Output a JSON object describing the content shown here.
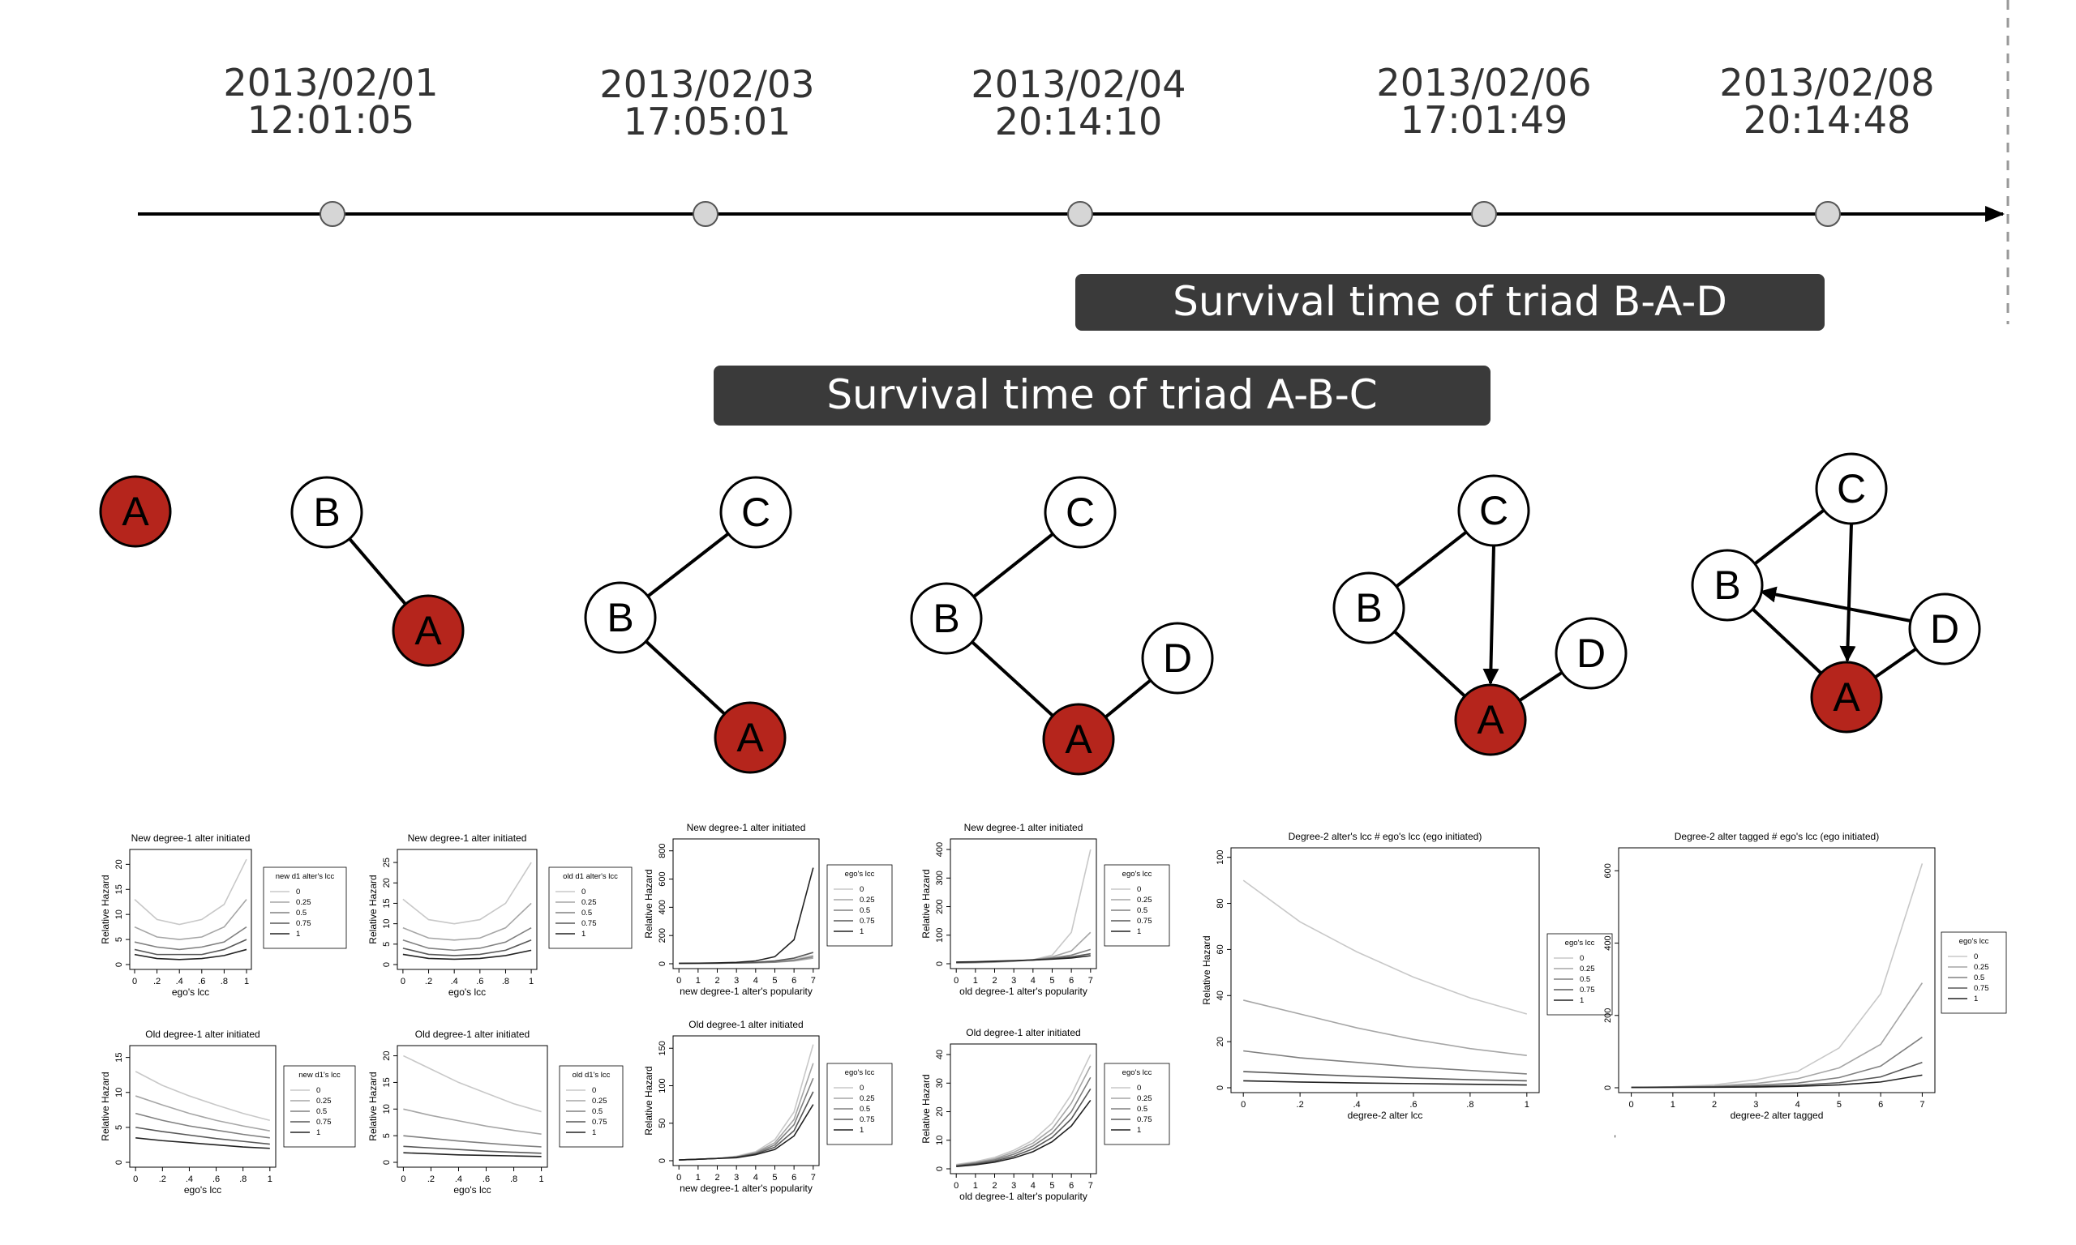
{
  "timeline": {
    "events": [
      {
        "date": "2013/02/01",
        "time": "12:01:05"
      },
      {
        "date": "2013/02/03",
        "time": "17:05:01"
      },
      {
        "date": "2013/02/04",
        "time": "20:14:10"
      },
      {
        "date": "2013/02/06",
        "time": "17:01:49"
      },
      {
        "date": "2013/02/08",
        "time": "20:14:48"
      }
    ],
    "bars": [
      {
        "label": "Survival time of triad B-A-D"
      },
      {
        "label": "Survival time of triad A-B-C"
      }
    ]
  },
  "colors": {
    "ego": "#b5251c",
    "bar": "#3a3a3a",
    "axis": "#000000"
  },
  "networks": [
    {
      "nodes": [
        {
          "label": "A",
          "ego": true
        }
      ],
      "edges": []
    },
    {
      "nodes": [
        {
          "label": "B"
        },
        {
          "label": "A",
          "ego": true
        }
      ],
      "edges": [
        [
          "B",
          "A",
          false
        ]
      ]
    },
    {
      "nodes": [
        {
          "label": "C"
        },
        {
          "label": "B"
        },
        {
          "label": "A",
          "ego": true
        }
      ],
      "edges": [
        [
          "B",
          "C",
          false
        ],
        [
          "B",
          "A",
          false
        ]
      ]
    },
    {
      "nodes": [
        {
          "label": "C"
        },
        {
          "label": "B"
        },
        {
          "label": "D"
        },
        {
          "label": "A",
          "ego": true
        }
      ],
      "edges": [
        [
          "B",
          "C",
          false
        ],
        [
          "B",
          "A",
          false
        ],
        [
          "D",
          "A",
          false
        ]
      ]
    },
    {
      "nodes": [
        {
          "label": "C"
        },
        {
          "label": "B"
        },
        {
          "label": "D"
        },
        {
          "label": "A",
          "ego": true
        }
      ],
      "edges": [
        [
          "B",
          "C",
          false
        ],
        [
          "B",
          "A",
          false
        ],
        [
          "D",
          "A",
          false
        ],
        [
          "C",
          "A",
          true
        ]
      ]
    },
    {
      "nodes": [
        {
          "label": "C"
        },
        {
          "label": "B"
        },
        {
          "label": "D"
        },
        {
          "label": "A",
          "ego": true
        }
      ],
      "edges": [
        [
          "B",
          "C",
          false
        ],
        [
          "B",
          "A",
          false
        ],
        [
          "D",
          "A",
          false
        ],
        [
          "C",
          "A",
          true
        ],
        [
          "D",
          "B",
          true
        ]
      ]
    }
  ],
  "chart_data": [
    {
      "type": "line",
      "title": "New degree-1 alter initiated",
      "xlabel": "ego's lcc",
      "ylabel": "Relative Hazard",
      "x": [
        0,
        0.2,
        0.4,
        0.6,
        0.8,
        1
      ],
      "xticks": [
        "0",
        ".2",
        ".4",
        ".6",
        ".8",
        "1"
      ],
      "ylim": [
        0,
        22
      ],
      "yticks": [
        0,
        5,
        10,
        15,
        20
      ],
      "legend_title": "new d1 alter's lcc",
      "series": [
        {
          "name": "0",
          "values": [
            13,
            9,
            8,
            9,
            12,
            21
          ]
        },
        {
          "name": "0.25",
          "values": [
            7.5,
            5.5,
            5,
            5.5,
            7.5,
            13
          ]
        },
        {
          "name": "0.5",
          "values": [
            4.5,
            3.5,
            3,
            3.5,
            4.5,
            7.5
          ]
        },
        {
          "name": "0.75",
          "values": [
            3,
            2,
            2,
            2,
            3,
            5
          ]
        },
        {
          "name": "1",
          "values": [
            2,
            1.2,
            1,
            1.2,
            1.8,
            3
          ]
        }
      ]
    },
    {
      "type": "line",
      "title": "New degree-1 alter initiated",
      "xlabel": "ego's lcc",
      "ylabel": "Relative Hazard",
      "x": [
        0,
        0.2,
        0.4,
        0.6,
        0.8,
        1
      ],
      "xticks": [
        "0",
        ".2",
        ".4",
        ".6",
        ".8",
        "1"
      ],
      "ylim": [
        0,
        27
      ],
      "yticks": [
        0,
        5,
        10,
        15,
        20,
        25
      ],
      "legend_title": "old d1 alter's lcc",
      "series": [
        {
          "name": "0",
          "values": [
            16,
            11,
            10,
            11,
            15,
            25
          ]
        },
        {
          "name": "0.25",
          "values": [
            9,
            6.5,
            6,
            6.5,
            9,
            15
          ]
        },
        {
          "name": "0.5",
          "values": [
            6,
            4,
            3.5,
            4,
            5.5,
            9
          ]
        },
        {
          "name": "0.75",
          "values": [
            4,
            2.5,
            2.2,
            2.5,
            3.5,
            6
          ]
        },
        {
          "name": "1",
          "values": [
            2.5,
            1.5,
            1.3,
            1.5,
            2.2,
            3.5
          ]
        }
      ]
    },
    {
      "type": "line",
      "title": "New degree-1 alter initiated",
      "xlabel": "new degree-1 alter's popularity",
      "ylabel": "Relative Hazard",
      "x": [
        0,
        1,
        2,
        3,
        4,
        5,
        6,
        7
      ],
      "xticks": [
        "0",
        "1",
        "2",
        "3",
        "4",
        "5",
        "6",
        "7"
      ],
      "ylim": [
        0,
        850
      ],
      "yticks": [
        0,
        200,
        400,
        600,
        800
      ],
      "legend_title": "ego's lcc",
      "series": [
        {
          "name": "0",
          "values": [
            2,
            3,
            4,
            5,
            7,
            12,
            30,
            60
          ]
        },
        {
          "name": "0.25",
          "values": [
            2,
            3,
            4,
            5,
            7,
            10,
            20,
            40
          ]
        },
        {
          "name": "0.5",
          "values": [
            2,
            3,
            4,
            5,
            8,
            12,
            25,
            50
          ]
        },
        {
          "name": "0.75",
          "values": [
            2,
            3,
            4,
            6,
            10,
            20,
            40,
            80
          ]
        },
        {
          "name": "1",
          "values": [
            3,
            4,
            6,
            10,
            20,
            50,
            170,
            680
          ]
        }
      ]
    },
    {
      "type": "line",
      "title": "New degree-1 alter initiated",
      "xlabel": "old degree-1 alter's popularity",
      "ylabel": "Relative Hazard",
      "x": [
        0,
        1,
        2,
        3,
        4,
        5,
        6,
        7
      ],
      "xticks": [
        "0",
        "1",
        "2",
        "3",
        "4",
        "5",
        "6",
        "7"
      ],
      "ylim": [
        0,
        420
      ],
      "yticks": [
        0,
        100,
        200,
        300,
        400
      ],
      "legend_title": "ego's lcc",
      "series": [
        {
          "name": "0",
          "values": [
            2,
            3,
            5,
            8,
            14,
            30,
            110,
            400
          ]
        },
        {
          "name": "0.25",
          "values": [
            3,
            4,
            6,
            9,
            14,
            24,
            45,
            110
          ]
        },
        {
          "name": "0.5",
          "values": [
            4,
            5,
            7,
            10,
            14,
            20,
            30,
            50
          ]
        },
        {
          "name": "0.75",
          "values": [
            5,
            6,
            8,
            10,
            13,
            18,
            24,
            35
          ]
        },
        {
          "name": "1",
          "values": [
            6,
            7,
            9,
            11,
            13,
            16,
            20,
            28
          ]
        }
      ]
    },
    {
      "type": "line",
      "title": "Old degree-1 alter initiated",
      "xlabel": "ego's lcc",
      "ylabel": "Relative Hazard",
      "x": [
        0,
        0.2,
        0.4,
        0.6,
        0.8,
        1
      ],
      "xticks": [
        "0",
        ".2",
        ".4",
        ".6",
        ".8",
        "1"
      ],
      "ylim": [
        0,
        16
      ],
      "yticks": [
        0,
        5,
        10,
        15
      ],
      "legend_title": "new d1's lcc",
      "series": [
        {
          "name": "0",
          "values": [
            13,
            11,
            9.5,
            8.2,
            7,
            6
          ]
        },
        {
          "name": "0.25",
          "values": [
            9.5,
            8.2,
            7,
            6,
            5.2,
            4.5
          ]
        },
        {
          "name": "0.5",
          "values": [
            7,
            6,
            5.2,
            4.6,
            4,
            3.5
          ]
        },
        {
          "name": "0.75",
          "values": [
            5,
            4.4,
            3.9,
            3.4,
            3,
            2.6
          ]
        },
        {
          "name": "1",
          "values": [
            3.5,
            3.1,
            2.8,
            2.5,
            2.2,
            2
          ]
        }
      ]
    },
    {
      "type": "line",
      "title": "Old degree-1 alter initiated",
      "xlabel": "ego's lcc",
      "ylabel": "Relative Hazard",
      "x": [
        0,
        0.2,
        0.4,
        0.6,
        0.8,
        1
      ],
      "xticks": [
        "0",
        ".2",
        ".4",
        ".6",
        ".8",
        "1"
      ],
      "ylim": [
        0,
        21
      ],
      "yticks": [
        0,
        5,
        10,
        15,
        20
      ],
      "legend_title": "old d1's lcc",
      "series": [
        {
          "name": "0",
          "values": [
            20,
            17.5,
            15,
            13,
            11,
            9.5
          ]
        },
        {
          "name": "0.25",
          "values": [
            10,
            8.8,
            7.8,
            6.8,
            6,
            5.3
          ]
        },
        {
          "name": "0.5",
          "values": [
            5,
            4.5,
            4,
            3.6,
            3.2,
            2.9
          ]
        },
        {
          "name": "0.75",
          "values": [
            3,
            2.7,
            2.4,
            2.1,
            1.9,
            1.7
          ]
        },
        {
          "name": "1",
          "values": [
            1.8,
            1.6,
            1.4,
            1.3,
            1.2,
            1.1
          ]
        }
      ]
    },
    {
      "type": "line",
      "title": "Old degree-1 alter initiated",
      "xlabel": "new degree-1 alter's popularity",
      "ylabel": "Relative Hazard",
      "x": [
        0,
        1,
        2,
        3,
        4,
        5,
        6,
        7
      ],
      "xticks": [
        "0",
        "1",
        "2",
        "3",
        "4",
        "5",
        "6",
        "7"
      ],
      "ylim": [
        0,
        160
      ],
      "yticks": [
        0,
        50,
        100,
        150
      ],
      "legend_title": "ego's lcc",
      "series": [
        {
          "name": "0",
          "values": [
            1,
            2,
            3,
            6,
            12,
            28,
            65,
            155
          ]
        },
        {
          "name": "0.25",
          "values": [
            1,
            2,
            3,
            5,
            11,
            24,
            55,
            130
          ]
        },
        {
          "name": "0.5",
          "values": [
            1,
            2,
            3,
            5,
            10,
            21,
            48,
            110
          ]
        },
        {
          "name": "0.75",
          "values": [
            1,
            2,
            3,
            5,
            9,
            18,
            40,
            92
          ]
        },
        {
          "name": "1",
          "values": [
            1,
            2,
            3,
            4,
            8,
            15,
            33,
            75
          ]
        }
      ]
    },
    {
      "type": "line",
      "title": "Old degree-1 alter initiated",
      "xlabel": "old degree-1 alter's popularity",
      "ylabel": "Relative Hazard",
      "x": [
        0,
        1,
        2,
        3,
        4,
        5,
        6,
        7
      ],
      "xticks": [
        "0",
        "1",
        "2",
        "3",
        "4",
        "5",
        "6",
        "7"
      ],
      "ylim": [
        0,
        42
      ],
      "yticks": [
        0,
        10,
        20,
        30,
        40
      ],
      "legend_title": "ego's lcc",
      "series": [
        {
          "name": "0",
          "values": [
            1.5,
            2.5,
            4,
            6.5,
            10,
            16,
            26,
            40
          ]
        },
        {
          "name": "0.25",
          "values": [
            1.3,
            2.2,
            3.5,
            5.8,
            9,
            14,
            23,
            36
          ]
        },
        {
          "name": "0.5",
          "values": [
            1.1,
            2,
            3.1,
            5.1,
            8,
            12.5,
            20,
            32
          ]
        },
        {
          "name": "0.75",
          "values": [
            1,
            1.7,
            2.7,
            4.4,
            7,
            11,
            17.5,
            28
          ]
        },
        {
          "name": "1",
          "values": [
            0.8,
            1.4,
            2.3,
            3.8,
            6,
            9.5,
            15,
            24
          ]
        }
      ]
    },
    {
      "type": "line",
      "title": "Degree-2 alter's lcc  # ego's lcc (ego initiated)",
      "xlabel": "degree-2 alter lcc",
      "ylabel": "Relative Hazard",
      "x": [
        0,
        0.2,
        0.4,
        0.6,
        0.8,
        1
      ],
      "xticks": [
        "0",
        ".2",
        ".4",
        ".6",
        ".8",
        "1"
      ],
      "ylim": [
        0,
        102
      ],
      "yticks": [
        0,
        20,
        40,
        60,
        80,
        100
      ],
      "legend_title": "ego's lcc",
      "series": [
        {
          "name": "0",
          "values": [
            90,
            72,
            59,
            48,
            39,
            32
          ]
        },
        {
          "name": "0.25",
          "values": [
            38,
            32,
            26,
            21,
            17,
            14
          ]
        },
        {
          "name": "0.5",
          "values": [
            16,
            13,
            11,
            9,
            7.5,
            6
          ]
        },
        {
          "name": "0.75",
          "values": [
            7,
            6,
            5,
            4.2,
            3.5,
            3
          ]
        },
        {
          "name": "1",
          "values": [
            3,
            2.5,
            2.1,
            1.8,
            1.5,
            1.2
          ]
        }
      ]
    },
    {
      "type": "line",
      "title": "Degree-2 alter tagged # ego's lcc (ego initiated)",
      "xlabel": "degree-2 alter tagged",
      "ylabel": "",
      "x": [
        0,
        1,
        2,
        3,
        4,
        5,
        6,
        7
      ],
      "xticks": [
        "0",
        "1",
        "2",
        "3",
        "4",
        "5",
        "6",
        "7"
      ],
      "ylim": [
        0,
        650
      ],
      "yticks": [
        0,
        200,
        400,
        600
      ],
      "legend_title": "ego's lcc",
      "series": [
        {
          "name": "0",
          "values": [
            1,
            3,
            8,
            22,
            45,
            110,
            260,
            620
          ]
        },
        {
          "name": "0.25",
          "values": [
            1,
            2,
            5,
            12,
            25,
            55,
            120,
            290
          ]
        },
        {
          "name": "0.5",
          "values": [
            1,
            2,
            3,
            7,
            13,
            28,
            60,
            140
          ]
        },
        {
          "name": "0.75",
          "values": [
            1,
            1.5,
            2,
            4,
            7,
            14,
            30,
            70
          ]
        },
        {
          "name": "1",
          "values": [
            1,
            1.2,
            1.5,
            2,
            4,
            8,
            16,
            35
          ]
        }
      ]
    }
  ]
}
